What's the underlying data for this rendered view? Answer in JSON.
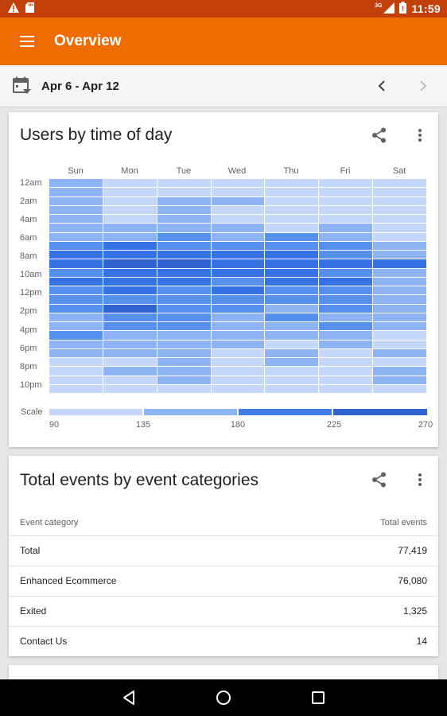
{
  "status_bar": {
    "time": "11:59",
    "network": "3G",
    "icons": [
      "warning-icon",
      "sd-card-icon",
      "signal-icon",
      "battery-icon"
    ]
  },
  "app_bar": {
    "title": "Overview",
    "menu_icon": "menu-icon",
    "color": "#ef6c00"
  },
  "date_bar": {
    "range": "Apr 6 - Apr 12",
    "icons": [
      "calendar-icon",
      "chevron-left-icon",
      "chevron-right-icon"
    ]
  },
  "heatmap_card": {
    "title": "Users by time of day",
    "icons": [
      "share-icon",
      "more-vert-icon"
    ],
    "scale_label": "Scale",
    "scale_ticks": [
      "90",
      "135",
      "180",
      "225",
      "270"
    ],
    "colors": [
      "#c6d8fa",
      "#8db3f3",
      "#5590ef",
      "#3572e3",
      "#2d62d0"
    ],
    "chart_data": {
      "type": "heatmap",
      "x_categories": [
        "Sun",
        "Mon",
        "Tue",
        "Wed",
        "Thu",
        "Fri",
        "Sat"
      ],
      "y_tick_labels": [
        "12am",
        "2am",
        "4am",
        "6am",
        "8am",
        "10am",
        "12pm",
        "2pm",
        "4pm",
        "6pm",
        "8pm",
        "10pm"
      ],
      "y_categories": [
        "12am",
        "1am",
        "2am",
        "3am",
        "4am",
        "5am",
        "6am",
        "7am",
        "8am",
        "9am",
        "10am",
        "11am",
        "12pm",
        "1pm",
        "2pm",
        "3pm",
        "4pm",
        "5pm",
        "6pm",
        "7pm",
        "8pm",
        "9pm",
        "10pm",
        "11pm"
      ],
      "scale": [
        90,
        135,
        180,
        225,
        270
      ],
      "levels_note_unused": null,
      "values_level": [
        [
          1,
          0,
          0,
          0,
          0,
          0,
          0
        ],
        [
          1,
          0,
          0,
          0,
          0,
          0,
          0
        ],
        [
          1,
          0,
          1,
          1,
          0,
          0,
          0
        ],
        [
          1,
          0,
          1,
          0,
          0,
          0,
          0
        ],
        [
          1,
          0,
          1,
          0,
          0,
          0,
          0
        ],
        [
          1,
          1,
          1,
          1,
          0,
          1,
          0
        ],
        [
          1,
          1,
          2,
          1,
          2,
          1,
          0
        ],
        [
          2,
          3,
          2,
          2,
          2,
          2,
          1
        ],
        [
          3,
          3,
          3,
          3,
          3,
          2,
          1
        ],
        [
          3,
          4,
          4,
          3,
          3,
          3,
          3
        ],
        [
          2,
          3,
          3,
          3,
          3,
          2,
          1
        ],
        [
          3,
          3,
          3,
          2,
          3,
          3,
          1
        ],
        [
          2,
          3,
          2,
          3,
          2,
          2,
          1
        ],
        [
          2,
          2,
          2,
          2,
          2,
          2,
          1
        ],
        [
          2,
          4,
          2,
          2,
          1,
          2,
          1
        ],
        [
          1,
          2,
          2,
          1,
          2,
          1,
          1
        ],
        [
          1,
          2,
          2,
          1,
          1,
          2,
          1
        ],
        [
          2,
          1,
          1,
          1,
          1,
          1,
          0
        ],
        [
          1,
          1,
          1,
          1,
          0,
          1,
          0
        ],
        [
          1,
          1,
          1,
          0,
          1,
          0,
          1
        ],
        [
          0,
          0,
          1,
          0,
          1,
          0,
          0
        ],
        [
          0,
          1,
          1,
          0,
          0,
          0,
          1
        ],
        [
          0,
          0,
          1,
          0,
          0,
          0,
          1
        ],
        [
          0,
          0,
          0,
          0,
          0,
          0,
          0
        ]
      ]
    }
  },
  "events_card": {
    "title": "Total events by event categories",
    "icons": [
      "share-icon",
      "more-vert-icon"
    ],
    "columns": [
      "Event category",
      "Total events"
    ],
    "rows": [
      {
        "category": "Total",
        "value": "77,419"
      },
      {
        "category": "Enhanced Ecommerce",
        "value": "76,080"
      },
      {
        "category": "Exited",
        "value": "1,325"
      },
      {
        "category": "Contact Us",
        "value": "14"
      }
    ]
  },
  "nav_bar": {
    "icons": [
      "back-icon",
      "home-icon",
      "recents-icon"
    ]
  }
}
